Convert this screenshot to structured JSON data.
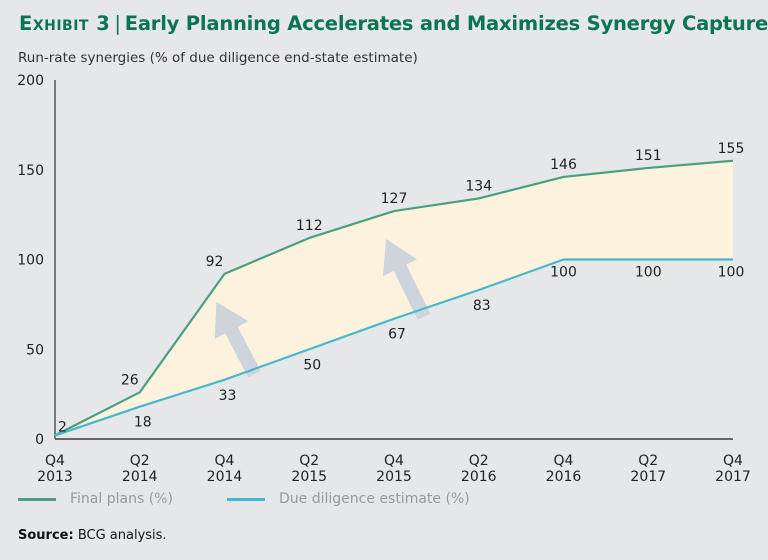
{
  "header": {
    "exhibit": "Exhibit 3",
    "separator": "|",
    "title": "Early Planning Accelerates and Maximizes Synergy Capture",
    "subtitle": "Run-rate synergies (% of due diligence end-state estimate)"
  },
  "footer": {
    "source_label": "Source:",
    "source_text": "BCG analysis."
  },
  "chart_data": {
    "type": "area",
    "title": "Early Planning Accelerates and Maximizes Synergy Capture",
    "xlabel": "",
    "ylabel": "Run-rate synergies (% of due diligence end-state estimate)",
    "ylim": [
      0,
      200
    ],
    "yticks": [
      0,
      50,
      100,
      150,
      200
    ],
    "grid": false,
    "legend_position": "bottom-left",
    "categories": [
      [
        "Q4",
        "2013"
      ],
      [
        "Q2",
        "2014"
      ],
      [
        "Q4",
        "2014"
      ],
      [
        "Q2",
        "2015"
      ],
      [
        "Q4",
        "2015"
      ],
      [
        "Q2",
        "2016"
      ],
      [
        "Q4",
        "2016"
      ],
      [
        "Q2",
        "2017"
      ],
      [
        "Q4",
        "2017"
      ]
    ],
    "series": [
      {
        "name": "Final plans (%)",
        "color": "#4a9e82",
        "values": [
          2,
          26,
          92,
          112,
          127,
          134,
          146,
          151,
          155
        ]
      },
      {
        "name": "Due diligence estimate (%)",
        "color": "#45b8cc",
        "values": [
          2,
          18,
          33,
          50,
          67,
          83,
          100,
          100,
          100
        ]
      }
    ],
    "data_labels": {
      "Final plans (%)": [
        "2",
        "26",
        "92",
        "112",
        "127",
        "134",
        "146",
        "151",
        "155"
      ],
      "Due diligence estimate (%)": [
        "",
        "18",
        "33",
        "50",
        "67",
        "83",
        "100",
        "100",
        "100"
      ]
    },
    "fill_between_color": "#fdf2de",
    "annotations": [
      {
        "type": "arrow",
        "direction": "up",
        "from_category_index": 2,
        "color": "#cdd4db"
      },
      {
        "type": "arrow",
        "direction": "up",
        "from_category_index": 4,
        "color": "#cdd4db"
      }
    ]
  }
}
